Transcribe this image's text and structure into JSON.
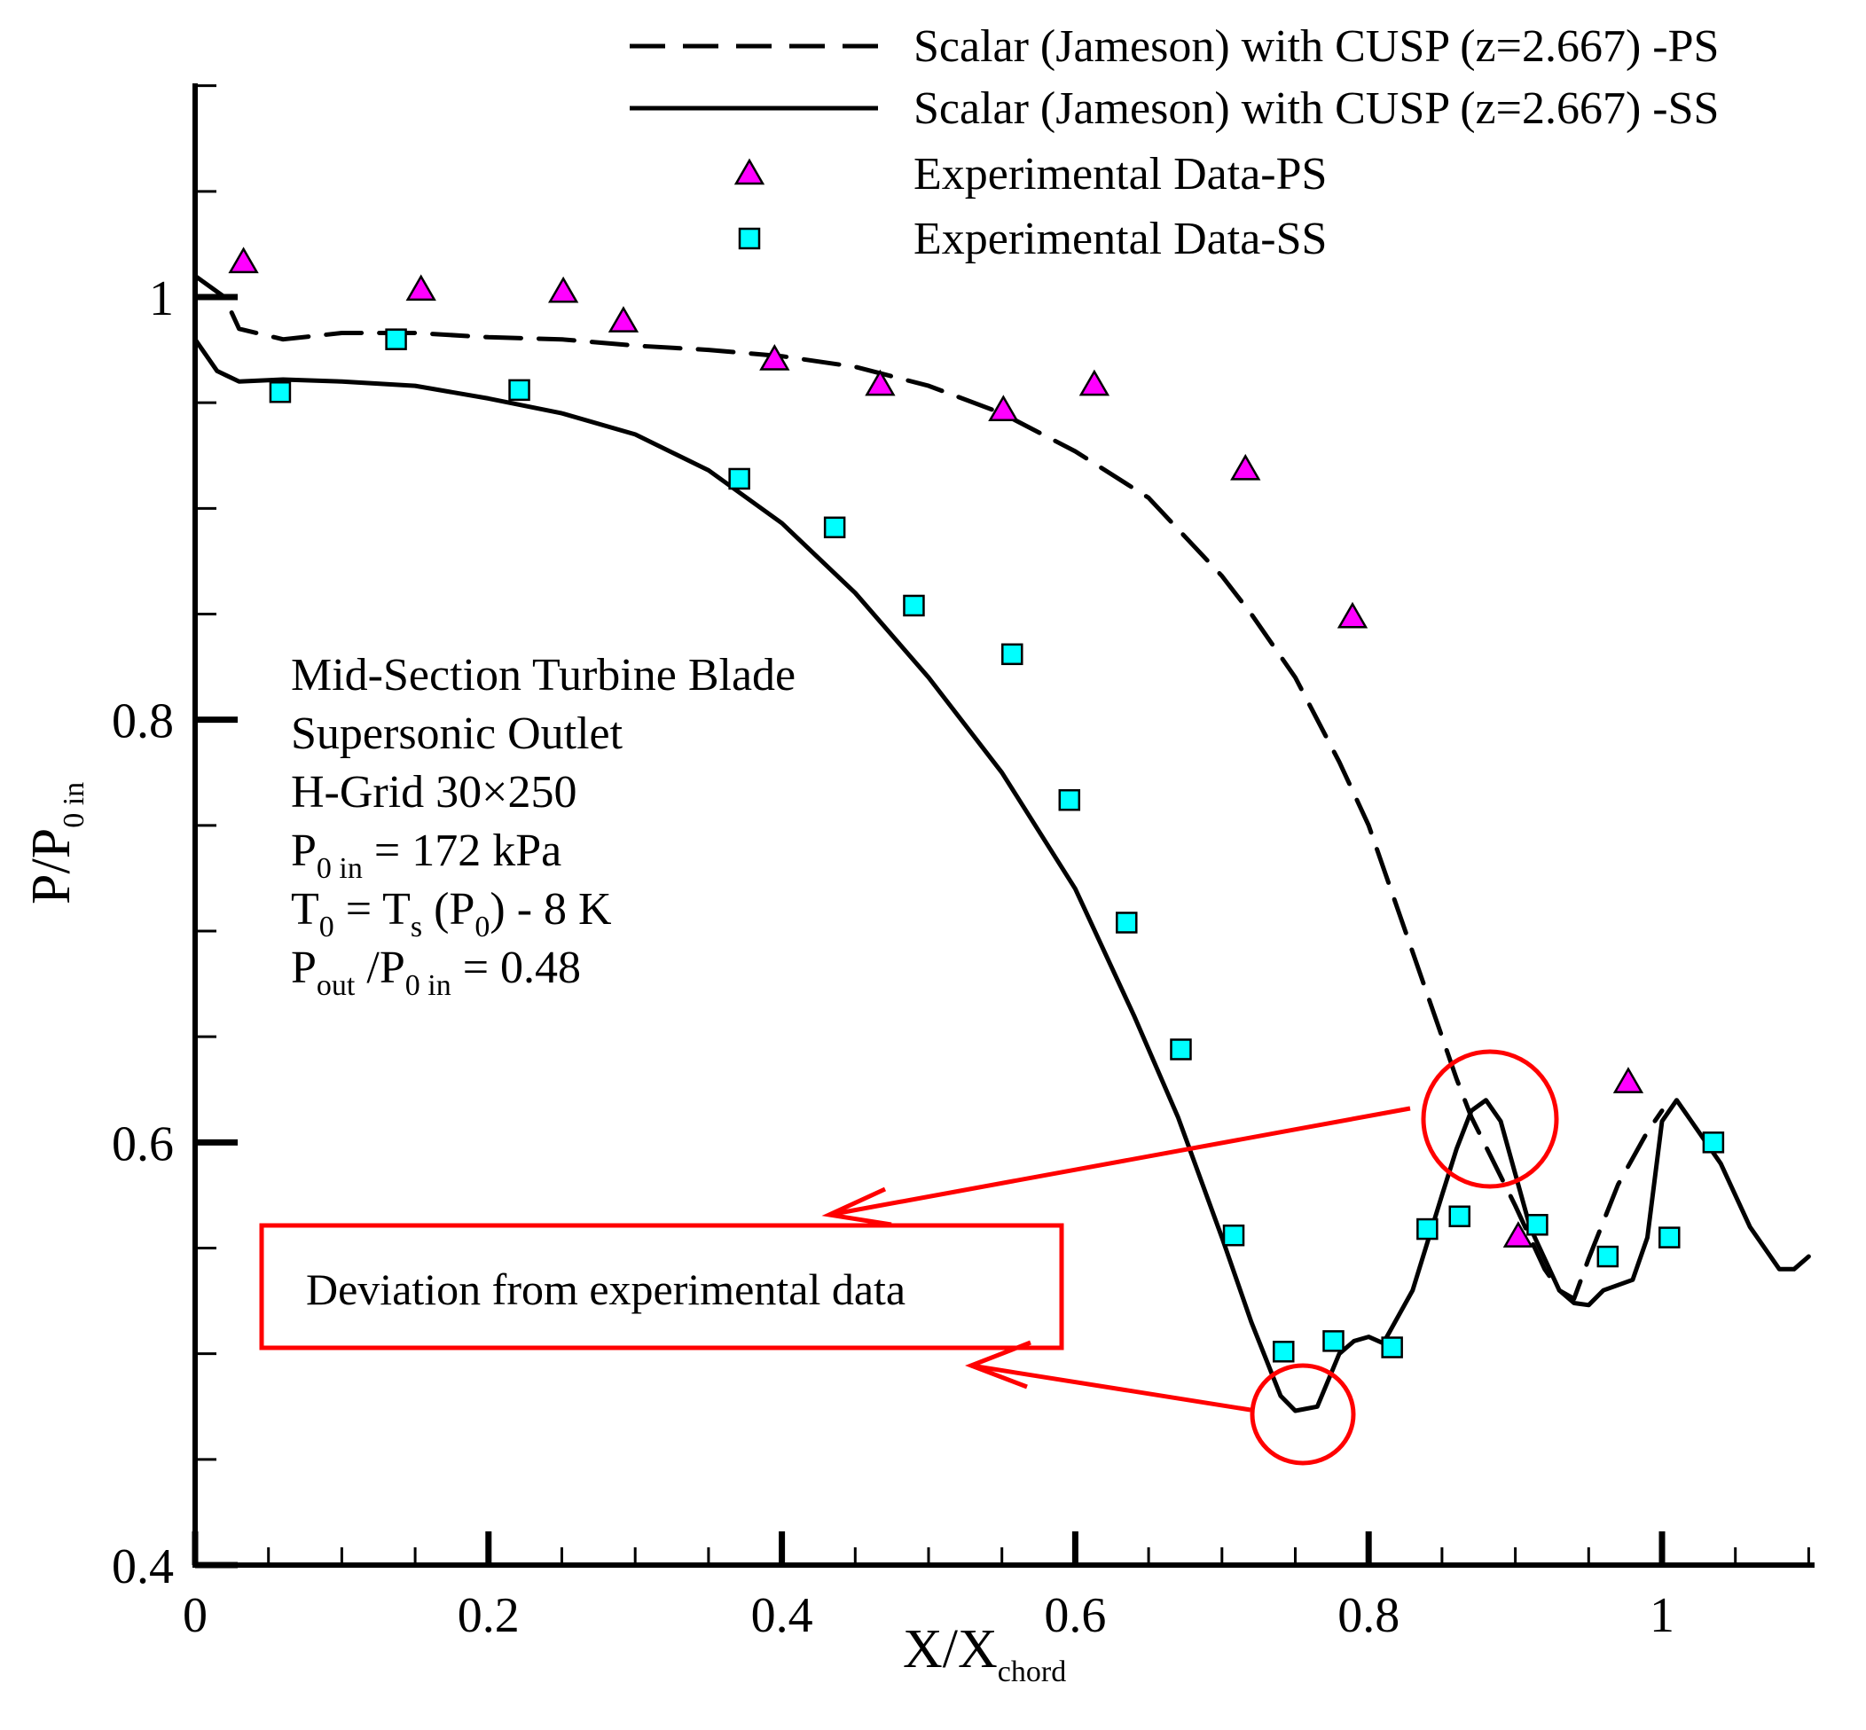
{
  "chart_data": {
    "type": "line",
    "xlabel": {
      "main": "X/X",
      "sub": "chord"
    },
    "ylabel": {
      "main": "P/P",
      "sub": "0 in"
    },
    "xlim": [
      0,
      1.1
    ],
    "ylim": [
      0.4,
      1.1
    ],
    "x_ticks": [
      0,
      0.2,
      0.4,
      0.6,
      0.8,
      1
    ],
    "x_tick_labels": [
      "0",
      "0.2",
      "0.4",
      "0.6",
      "0.8",
      "1"
    ],
    "y_ticks": [
      0.4,
      0.6,
      0.8,
      1
    ],
    "y_tick_labels": [
      "0.4",
      "0.6",
      "0.8",
      "1"
    ],
    "grid": false,
    "legend_position": "top-right",
    "series": [
      {
        "name": "Scalar (Jameson) with CUSP (z=2.667) -PS",
        "style": "dashed",
        "color": "#000000",
        "x": [
          0,
          0.02,
          0.03,
          0.06,
          0.1,
          0.15,
          0.2,
          0.25,
          0.3,
          0.35,
          0.4,
          0.45,
          0.5,
          0.55,
          0.6,
          0.65,
          0.7,
          0.72,
          0.75,
          0.78,
          0.8,
          0.82,
          0.84,
          0.86,
          0.87,
          0.88,
          0.9,
          0.91,
          0.92,
          0.93,
          0.94,
          0.95,
          0.97,
          0.99,
          1.0
        ],
        "y": [
          1.01,
          1.0,
          0.985,
          0.98,
          0.983,
          0.983,
          0.981,
          0.98,
          0.977,
          0.975,
          0.972,
          0.967,
          0.958,
          0.945,
          0.927,
          0.905,
          0.868,
          0.85,
          0.82,
          0.78,
          0.75,
          0.71,
          0.67,
          0.63,
          0.612,
          0.598,
          0.57,
          0.555,
          0.54,
          0.53,
          0.526,
          0.545,
          0.58,
          0.605,
          0.615
        ]
      },
      {
        "name": "Scalar (Jameson) with CUSP (z=2.667) -SS",
        "style": "solid",
        "color": "#000000",
        "x": [
          0,
          0.015,
          0.03,
          0.06,
          0.1,
          0.15,
          0.2,
          0.25,
          0.3,
          0.35,
          0.4,
          0.45,
          0.5,
          0.55,
          0.6,
          0.64,
          0.67,
          0.7,
          0.72,
          0.74,
          0.75,
          0.765,
          0.78,
          0.79,
          0.8,
          0.81,
          0.83,
          0.85,
          0.86,
          0.87,
          0.88,
          0.89,
          0.9,
          0.91,
          0.93,
          0.94,
          0.95,
          0.96,
          0.98,
          0.99,
          1.0,
          1.01,
          1.02,
          1.04,
          1.06,
          1.08,
          1.09,
          1.1
        ],
        "y": [
          0.98,
          0.965,
          0.96,
          0.961,
          0.96,
          0.958,
          0.952,
          0.945,
          0.935,
          0.918,
          0.893,
          0.86,
          0.82,
          0.775,
          0.72,
          0.66,
          0.612,
          0.555,
          0.515,
          0.48,
          0.473,
          0.475,
          0.5,
          0.506,
          0.508,
          0.505,
          0.53,
          0.575,
          0.597,
          0.615,
          0.62,
          0.61,
          0.585,
          0.56,
          0.53,
          0.524,
          0.523,
          0.53,
          0.535,
          0.555,
          0.61,
          0.62,
          0.61,
          0.59,
          0.56,
          0.54,
          0.54,
          0.546
        ]
      },
      {
        "name": "Experimental Data-PS",
        "style": "marker-triangle",
        "color": "#ff00ff",
        "x": [
          0.033,
          0.154,
          0.251,
          0.292,
          0.395,
          0.467,
          0.551,
          0.613,
          0.716,
          0.789,
          0.902,
          0.977
        ],
        "y": [
          1.016,
          1.003,
          1.002,
          0.988,
          0.97,
          0.958,
          0.946,
          0.958,
          0.918,
          0.848,
          0.555,
          0.628
        ]
      },
      {
        "name": "Experimental Data-SS",
        "style": "marker-square",
        "color": "#00ffff",
        "x": [
          0.058,
          0.137,
          0.221,
          0.371,
          0.436,
          0.49,
          0.557,
          0.596,
          0.635,
          0.672,
          0.708,
          0.742,
          0.776,
          0.816,
          0.84,
          0.862,
          0.915,
          0.963,
          1.005,
          1.035
        ],
        "y": [
          0.955,
          0.98,
          0.956,
          0.914,
          0.891,
          0.854,
          0.831,
          0.762,
          0.704,
          0.644,
          0.556,
          0.501,
          0.506,
          0.503,
          0.559,
          0.565,
          0.561,
          0.546,
          0.555,
          0.6
        ]
      }
    ],
    "annotations": {
      "case_info": [
        "Mid-Section Turbine Blade",
        "Supersonic Outlet",
        "H-Grid 30×250"
      ],
      "p0in": {
        "p": "P",
        "sub": "0 in",
        "rest": " = 172 kPa"
      },
      "t0": {
        "t": "T",
        "sub1": "0",
        "mid": " = T",
        "sub2": "s",
        "mid2": " (P",
        "sub3": "0",
        "rest": ") - 8 K"
      },
      "pratio": {
        "p": "P",
        "sub1": "out",
        "mid": " /P",
        "sub2": "0 in",
        "rest": " = 0.48"
      },
      "callout": "Deviation from experimental data",
      "callout_color": "#ff0000"
    }
  }
}
